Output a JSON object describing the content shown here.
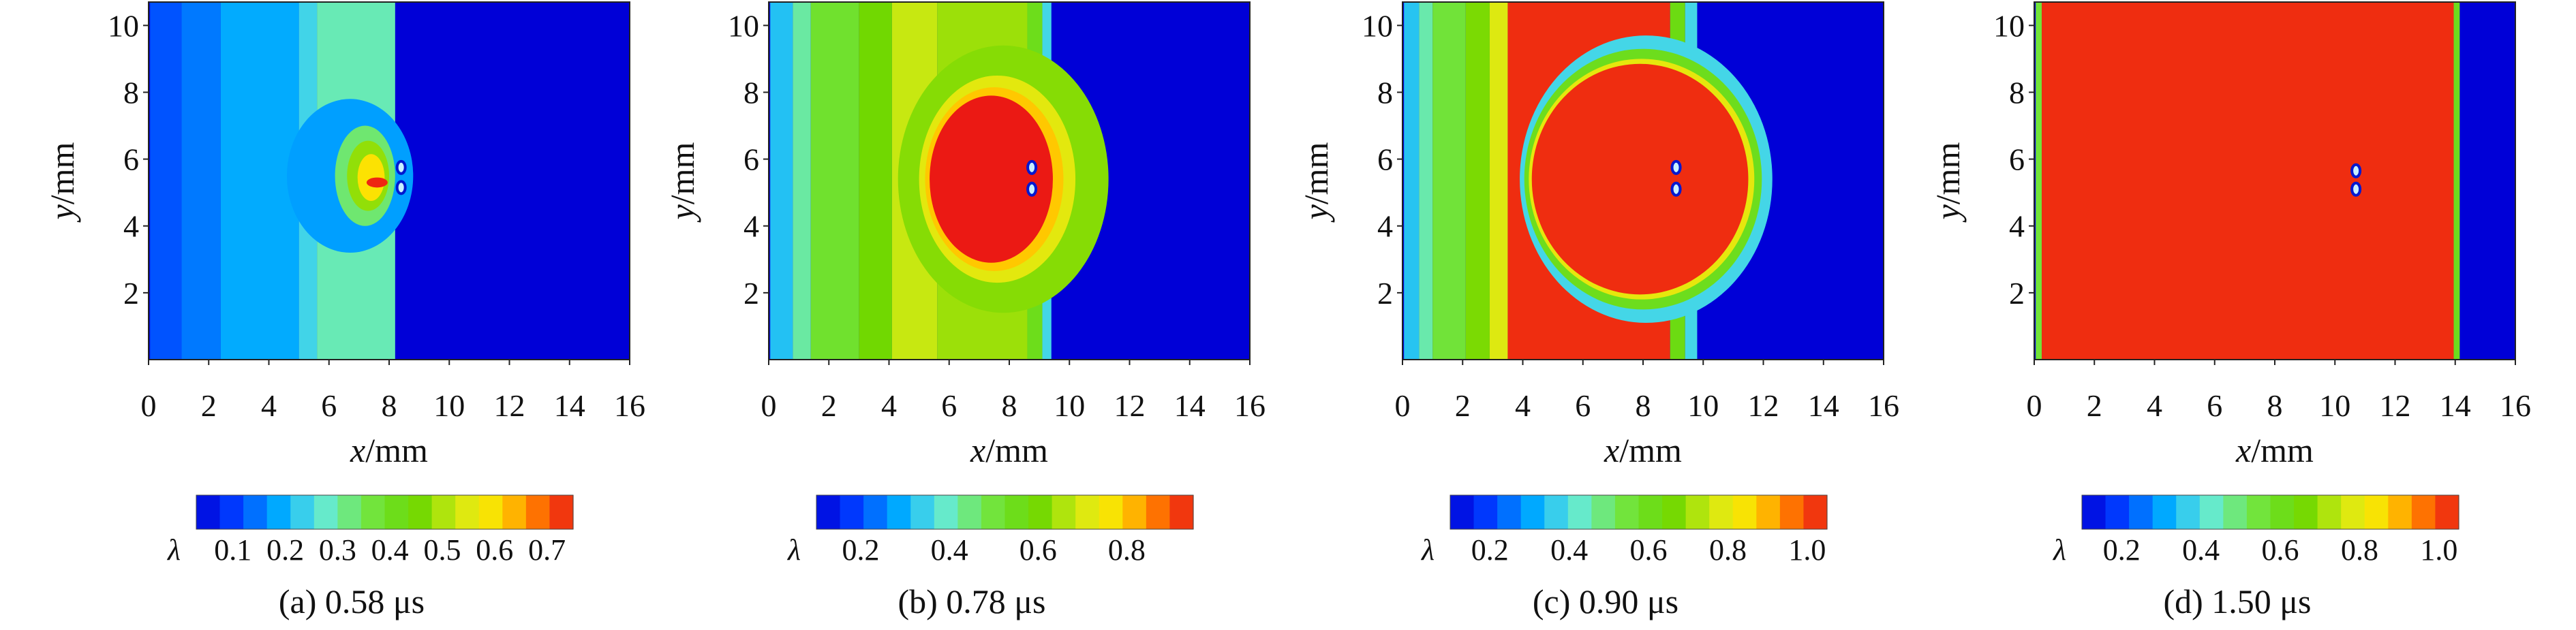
{
  "chart_data": [
    {
      "type": "heatmap",
      "panel_label": "(a) 0.58 μs",
      "xlabel_var": "x",
      "xlabel_unit": "/mm",
      "ylabel_var": "y",
      "ylabel_unit": "/mm",
      "xlim": [
        0,
        16
      ],
      "ylim": [
        0,
        10.7
      ],
      "x_ticks": [
        0,
        2,
        4,
        6,
        8,
        10,
        12,
        14,
        16
      ],
      "y_ticks": [
        2,
        4,
        6,
        8,
        10
      ],
      "colorbar": {
        "symbol": "λ",
        "range": [
          0.03,
          0.75
        ],
        "ticks": [
          0.1,
          0.2,
          0.3,
          0.4,
          0.5,
          0.6,
          0.7
        ],
        "tick_labels": [
          "0.1",
          "0.2",
          "0.3",
          "0.4",
          "0.5",
          "0.6",
          "0.7"
        ]
      },
      "background_value": 0.03,
      "bands": [
        {
          "x": [
            0.05,
            1.1
          ],
          "value": 0.12
        },
        {
          "x": [
            1.1,
            2.4
          ],
          "value": 0.15
        },
        {
          "x": [
            2.4,
            5.0
          ],
          "value": 0.19
        },
        {
          "x": [
            5.0,
            5.6
          ],
          "value": 0.24
        },
        {
          "x": [
            5.6,
            8.2
          ],
          "value": 0.29
        }
      ],
      "blobs": [
        {
          "cx": 6.7,
          "cy": 5.5,
          "rx": 2.1,
          "ry": 2.3,
          "value": 0.18
        },
        {
          "cx": 7.2,
          "cy": 5.5,
          "rx": 1.0,
          "ry": 1.5,
          "value": 0.33
        },
        {
          "cx": 7.3,
          "cy": 5.5,
          "rx": 0.7,
          "ry": 1.05,
          "value": 0.48
        },
        {
          "cx": 7.4,
          "cy": 5.45,
          "rx": 0.45,
          "ry": 0.7,
          "value": 0.6
        },
        {
          "cx": 7.6,
          "cy": 5.3,
          "rx": 0.35,
          "ry": 0.15,
          "value": 0.74
        }
      ],
      "holes": [
        {
          "cx": 8.4,
          "cy": 5.75
        },
        {
          "cx": 8.4,
          "cy": 5.15
        }
      ]
    },
    {
      "type": "heatmap",
      "panel_label": "(b) 0.78 μs",
      "xlabel_var": "x",
      "xlabel_unit": "/mm",
      "ylabel_var": "y",
      "ylabel_unit": "/mm",
      "xlim": [
        0,
        16
      ],
      "ylim": [
        0,
        10.7
      ],
      "x_ticks": [
        0,
        2,
        4,
        6,
        8,
        10,
        12,
        14,
        16
      ],
      "y_ticks": [
        2,
        4,
        6,
        8,
        10
      ],
      "colorbar": {
        "symbol": "λ",
        "range": [
          0.1,
          0.95
        ],
        "ticks": [
          0.2,
          0.4,
          0.6,
          0.8
        ],
        "tick_labels": [
          "0.2",
          "0.4",
          "0.6",
          "0.8"
        ]
      },
      "background_value": 0.1,
      "bands": [
        {
          "x": [
            0.05,
            0.8
          ],
          "value": 0.32
        },
        {
          "x": [
            0.8,
            1.4
          ],
          "value": 0.42
        },
        {
          "x": [
            1.4,
            3.0
          ],
          "value": 0.52
        },
        {
          "x": [
            3.0,
            4.1
          ],
          "value": 0.6
        },
        {
          "x": [
            4.1,
            5.6
          ],
          "value": 0.68
        },
        {
          "x": [
            5.6,
            8.6
          ],
          "value": 0.64
        },
        {
          "x": [
            8.6,
            9.1
          ],
          "value": 0.55
        },
        {
          "x": [
            9.1,
            9.4
          ],
          "value": 0.35
        }
      ],
      "blobs": [
        {
          "cx": 7.8,
          "cy": 5.4,
          "rx": 3.5,
          "ry": 4.0,
          "value": 0.62
        },
        {
          "cx": 7.6,
          "cy": 5.4,
          "rx": 2.6,
          "ry": 3.1,
          "value": 0.72
        },
        {
          "cx": 7.5,
          "cy": 5.4,
          "rx": 2.3,
          "ry": 2.75,
          "value": 0.8
        },
        {
          "cx": 7.4,
          "cy": 5.4,
          "rx": 2.05,
          "ry": 2.5,
          "value": 0.95
        }
      ],
      "holes": [
        {
          "cx": 8.75,
          "cy": 5.75
        },
        {
          "cx": 8.75,
          "cy": 5.1
        }
      ]
    },
    {
      "type": "heatmap",
      "panel_label": "(c) 0.90 μs",
      "xlabel_var": "x",
      "xlabel_unit": "/mm",
      "ylabel_var": "y",
      "ylabel_unit": "/mm",
      "xlim": [
        0,
        16
      ],
      "ylim": [
        0,
        10.7
      ],
      "x_ticks": [
        0,
        2,
        4,
        6,
        8,
        10,
        12,
        14,
        16
      ],
      "y_ticks": [
        2,
        4,
        6,
        8,
        10
      ],
      "colorbar": {
        "symbol": "λ",
        "range": [
          0.1,
          1.05
        ],
        "ticks": [
          0.2,
          0.4,
          0.6,
          0.8,
          1.0
        ],
        "tick_labels": [
          "0.2",
          "0.4",
          "0.6",
          "0.8",
          "1.0"
        ]
      },
      "background_value": 0.1,
      "bands": [
        {
          "x": [
            0.05,
            0.55
          ],
          "value": 0.35
        },
        {
          "x": [
            0.55,
            1.0
          ],
          "value": 0.45
        },
        {
          "x": [
            1.0,
            2.1
          ],
          "value": 0.55
        },
        {
          "x": [
            2.1,
            2.9
          ],
          "value": 0.67
        },
        {
          "x": [
            2.9,
            3.5
          ],
          "value": 0.78
        },
        {
          "x": [
            3.5,
            8.9
          ],
          "value": 1.03
        },
        {
          "x": [
            8.9,
            9.4
          ],
          "value": 0.62
        },
        {
          "x": [
            9.4,
            9.8
          ],
          "value": 0.38
        }
      ],
      "blobs": [
        {
          "cx": 8.1,
          "cy": 5.4,
          "rx": 4.2,
          "ry": 4.3,
          "value": 0.38
        },
        {
          "cx": 8.0,
          "cy": 5.4,
          "rx": 3.95,
          "ry": 3.9,
          "value": 0.6
        },
        {
          "cx": 7.95,
          "cy": 5.4,
          "rx": 3.75,
          "ry": 3.6,
          "value": 0.8
        },
        {
          "cx": 7.9,
          "cy": 5.4,
          "rx": 3.6,
          "ry": 3.45,
          "value": 1.03
        }
      ],
      "holes": [
        {
          "cx": 9.1,
          "cy": 5.75
        },
        {
          "cx": 9.1,
          "cy": 5.1
        }
      ]
    },
    {
      "type": "heatmap",
      "panel_label": "(d) 1.50 μs",
      "xlabel_var": "x",
      "xlabel_unit": "/mm",
      "ylabel_var": "y",
      "ylabel_unit": "/mm",
      "xlim": [
        0,
        16
      ],
      "ylim": [
        0,
        10.7
      ],
      "x_ticks": [
        0,
        2,
        4,
        6,
        8,
        10,
        12,
        14,
        16
      ],
      "y_ticks": [
        2,
        4,
        6,
        8,
        10
      ],
      "colorbar": {
        "symbol": "λ",
        "range": [
          0.1,
          1.05
        ],
        "ticks": [
          0.2,
          0.4,
          0.6,
          0.8,
          1.0
        ],
        "tick_labels": [
          "0.2",
          "0.4",
          "0.6",
          "0.8",
          "1.0"
        ]
      },
      "background_value": 0.1,
      "bands": [
        {
          "x": [
            0.05,
            0.25
          ],
          "value": 0.55
        },
        {
          "x": [
            0.25,
            13.95
          ],
          "value": 1.03
        },
        {
          "x": [
            13.95,
            14.15
          ],
          "value": 0.6
        }
      ],
      "blobs": [],
      "holes": [
        {
          "cx": 10.7,
          "cy": 5.65
        },
        {
          "cx": 10.7,
          "cy": 5.1
        }
      ]
    }
  ]
}
